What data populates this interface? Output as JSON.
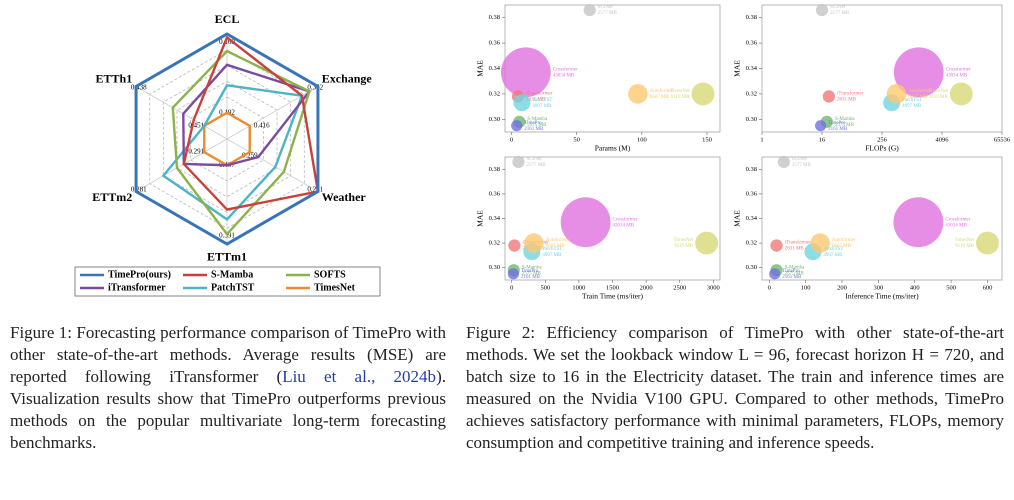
{
  "figure1": {
    "chart": {
      "type": "radar",
      "axes": [
        {
          "name": "ECL",
          "best": 0.169,
          "worst": 0.192
        },
        {
          "name": "Exchange",
          "best": 0.352,
          "worst": 0.416
        },
        {
          "name": "Weather",
          "best": 0.251,
          "worst": 0.259
        },
        {
          "name": "ETTm1",
          "best": 0.391,
          "worst": 0.407
        },
        {
          "name": "ETTm2",
          "best": 0.281,
          "worst": 0.291
        },
        {
          "name": "ETTh1",
          "best": 0.438,
          "worst": 0.451
        }
      ],
      "series": [
        {
          "name": "TimePro(ours)",
          "color": "#3a74b8",
          "values": [
            0.169,
            0.352,
            0.251,
            0.391,
            0.281,
            0.438
          ]
        },
        {
          "name": "S-Mamba",
          "color": "#c8413a",
          "values": [
            0.17,
            0.367,
            0.251,
            0.398,
            0.288,
            0.449
          ]
        },
        {
          "name": "SOFTS",
          "color": "#8db24a",
          "values": [
            0.174,
            0.36,
            0.255,
            0.393,
            0.287,
            0.445
          ]
        },
        {
          "name": "iTransformer",
          "color": "#7d4b9e",
          "values": [
            0.178,
            0.36,
            0.258,
            0.407,
            0.288,
            0.447
          ]
        },
        {
          "name": "PatchTST",
          "color": "#4db3c8",
          "values": [
            0.184,
            0.367,
            0.256,
            0.396,
            0.285,
            0.451
          ]
        },
        {
          "name": "TimesNet",
          "color": "#ef8a2f",
          "values": [
            0.192,
            0.416,
            0.259,
            0.407,
            0.291,
            0.451
          ]
        }
      ]
    },
    "caption": [
      "Figure 1: Forecasting performance comparison of TimePro with other state-of-the-art methods. Average results (MSE) are reported following iTransformer (",
      "Liu et al., 2024b",
      "). Visualization results show that TimePro outperforms previous methods on the popular multivariate long-term forecasting benchmarks."
    ]
  },
  "figure2": {
    "models": [
      {
        "name": "SCINet",
        "color": "#c4c4c4",
        "mae": 0.386,
        "memory": 2577,
        "memory_label": "2577 MB"
      },
      {
        "name": "Crossformer",
        "color": "#e070e0",
        "mae": 0.337,
        "memory": 43034,
        "memory_label": "43034 MB"
      },
      {
        "name": "iTransformer",
        "color": "#f07878",
        "mae": 0.318,
        "memory": 2631,
        "memory_label": "2631 MB"
      },
      {
        "name": "PatchTST",
        "color": "#70d4e0",
        "mae": 0.313,
        "memory": 4997,
        "memory_label": "4997 MB"
      },
      {
        "name": "Autoformer",
        "color": "#fcc870",
        "mae": 0.32,
        "memory": 6607,
        "memory_label": "6607 MB"
      },
      {
        "name": "TimesNet",
        "color": "#d8d878",
        "mae": 0.32,
        "memory": 9119,
        "memory_label": "9119 MB"
      },
      {
        "name": "S-Mamba",
        "color": "#70b870",
        "mae": 0.298,
        "memory": 2575,
        "memory_label": "2575 MB"
      },
      {
        "name": "TimePro",
        "color": "#7070e0",
        "mae": 0.295,
        "memory": 2161,
        "memory_label": "2161 MB"
      }
    ],
    "charts": [
      {
        "type": "scatter",
        "xlabel": "Params (M)",
        "ylabel": "MAE",
        "xlog": false,
        "xlim": [
          -5,
          160
        ],
        "xticks": [
          0,
          50,
          100,
          150
        ],
        "ylim": [
          0.29,
          0.39
        ],
        "yticks": [
          {
            "value": 0.3,
            "label": "0.30"
          },
          0.32,
          0.34,
          0.36,
          0.38
        ],
        "x": [
          60,
          11,
          5,
          8,
          97,
          147,
          6,
          4
        ]
      },
      {
        "type": "scatter",
        "xlabel": "FLOPs (G)",
        "ylabel": "MAE",
        "xlog": true,
        "xlim": [
          1,
          65536
        ],
        "xticks": [
          1,
          16,
          256,
          4096,
          65536
        ],
        "ylim": [
          0.29,
          0.39
        ],
        "yticks": [
          {
            "value": 0.3,
            "label": "0.30"
          },
          0.32,
          0.34,
          0.36,
          0.38
        ],
        "x": [
          16,
          1400,
          22,
          400,
          500,
          10000,
          20,
          15
        ]
      },
      {
        "type": "scatter",
        "xlabel": "Train Time (ms/iter)",
        "ylabel": "MAE",
        "xlog": false,
        "xlim": [
          -100,
          3100
        ],
        "xticks": [
          0,
          500,
          1000,
          1500,
          2000,
          2500,
          3000
        ],
        "ylim": [
          0.29,
          0.39
        ],
        "yticks": [
          {
            "value": 0.3,
            "label": "0.30"
          },
          0.32,
          0.34,
          0.36,
          0.38
        ],
        "x": [
          100,
          1100,
          40,
          300,
          330,
          2900,
          30,
          25
        ]
      },
      {
        "type": "scatter",
        "xlabel": "Inference Time (ms/iter)",
        "ylabel": "MAE",
        "xlog": false,
        "xlim": [
          -20,
          640
        ],
        "xticks": [
          0,
          100,
          200,
          300,
          400,
          500,
          600
        ],
        "ylim": [
          0.29,
          0.39
        ],
        "yticks": [
          {
            "value": 0.3,
            "label": "0.30"
          },
          0.32,
          0.34,
          0.36,
          0.38
        ],
        "x": [
          40,
          410,
          20,
          120,
          140,
          600,
          20,
          15
        ]
      }
    ],
    "caption": "Figure 2: Efficiency comparison of TimePro with other state-of-the-art methods. We set the lookback window L = 96, forecast horizon H = 720, and batch size to 16 in the Electricity dataset. The train and inference times are measured on the Nvidia V100 GPU. Compared to other methods, TimePro achieves satisfactory performance with minimal parameters, FLOPs, memory consumption and competitive training and inference speeds."
  }
}
